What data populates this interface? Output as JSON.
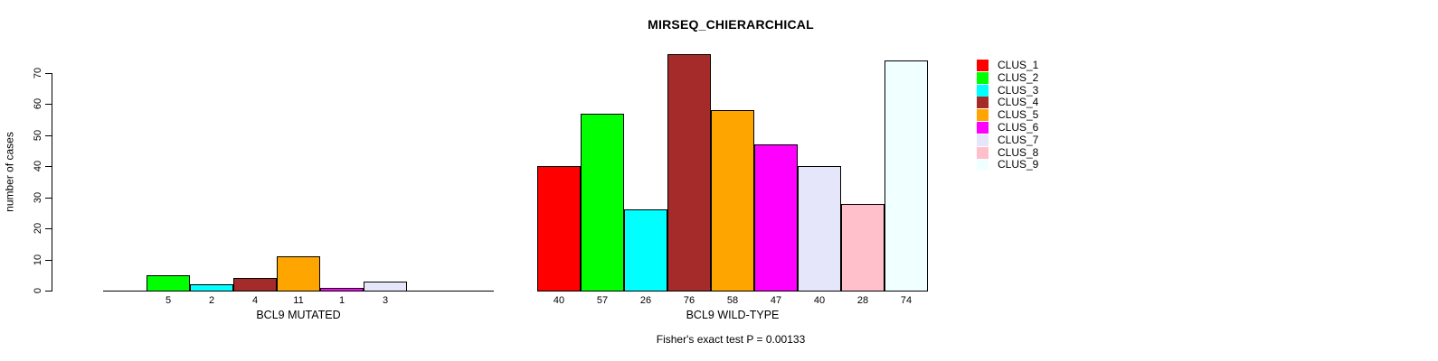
{
  "chart_data": {
    "type": "bar",
    "title": "MIRSEQ_CHIERARCHICAL",
    "ylabel": "number of cases",
    "xlabel": "",
    "ylim": [
      0,
      70
    ],
    "yticks": [
      0,
      10,
      20,
      30,
      40,
      50,
      60,
      70
    ],
    "grid": false,
    "legend_position": "right",
    "categories": [
      "BCL9 MUTATED",
      "BCL9 WILD-TYPE"
    ],
    "series": [
      {
        "name": "CLUS_1",
        "color": "#FF0000",
        "values": [
          0,
          40
        ]
      },
      {
        "name": "CLUS_2",
        "color": "#00FF00",
        "values": [
          5,
          57
        ]
      },
      {
        "name": "CLUS_3",
        "color": "#00FFFF",
        "values": [
          2,
          26
        ]
      },
      {
        "name": "CLUS_4",
        "color": "#A52A2A",
        "values": [
          4,
          76
        ]
      },
      {
        "name": "CLUS_5",
        "color": "#FFA500",
        "values": [
          11,
          58
        ]
      },
      {
        "name": "CLUS_6",
        "color": "#FF00FF",
        "values": [
          1,
          47
        ]
      },
      {
        "name": "CLUS_7",
        "color": "#E6E6FA",
        "values": [
          3,
          40
        ]
      },
      {
        "name": "CLUS_8",
        "color": "#FFC0CB",
        "values": [
          0,
          28
        ]
      },
      {
        "name": "CLUS_9",
        "color": "#F0FFFF",
        "values": [
          0,
          74
        ]
      }
    ],
    "value_labels": "bar values printed below x-axis; zero-value bars unlabeled",
    "annotation": "Fisher's exact test P = 0.00133"
  }
}
